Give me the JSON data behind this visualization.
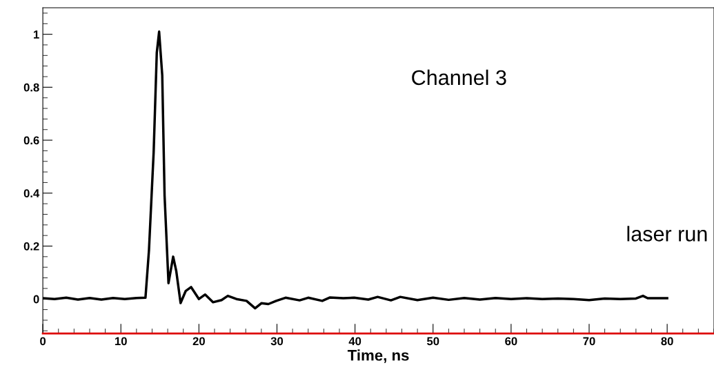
{
  "chart_data": {
    "type": "line",
    "xlabel": "Time, ns",
    "annotations": [
      "Channel 3",
      "laser run"
    ],
    "x": [
      0,
      1.5,
      3,
      4.5,
      6,
      7.5,
      9,
      10.5,
      12,
      13.15,
      13.6,
      14.2,
      14.6,
      14.9,
      15.3,
      15.6,
      16.1,
      16.7,
      17.1,
      17.65,
      18.3,
      19.0,
      20.0,
      20.8,
      21.8,
      22.9,
      23.7,
      24.8,
      26.1,
      27.2,
      28.0,
      28.9,
      29.9,
      31.1,
      32.9,
      34.0,
      35.8,
      36.8,
      38.5,
      39.9,
      41.7,
      42.9,
      44.6,
      45.8,
      48,
      50,
      52,
      54,
      56,
      58,
      60,
      62,
      64,
      66,
      68,
      70,
      72,
      74,
      76,
      76.9,
      77.5,
      80
    ],
    "series": [
      {
        "color": "#000000",
        "values": [
          0.003,
          0.0,
          0.005,
          -0.002,
          0.004,
          -0.002,
          0.004,
          0.0,
          0.004,
          0.005,
          0.185,
          0.555,
          0.93,
          1.01,
          0.845,
          0.39,
          0.06,
          0.16,
          0.105,
          -0.015,
          0.03,
          0.045,
          0.0,
          0.017,
          -0.012,
          -0.004,
          0.012,
          0.0,
          -0.007,
          -0.035,
          -0.016,
          -0.019,
          -0.007,
          0.005,
          -0.005,
          0.005,
          -0.007,
          0.006,
          0.003,
          0.005,
          -0.002,
          0.008,
          -0.005,
          0.008,
          -0.004,
          0.005,
          -0.003,
          0.004,
          -0.002,
          0.004,
          0.0,
          0.003,
          0.0,
          0.002,
          0.0,
          -0.004,
          0.002,
          0.0,
          0.002,
          0.012,
          0.003,
          0.003
        ]
      }
    ],
    "xlim": [
      0,
      86
    ],
    "ylim": [
      -0.13,
      1.1
    ],
    "xticks": [
      0,
      10,
      20,
      30,
      40,
      50,
      60,
      70,
      80
    ],
    "yticks": [
      0,
      0.2,
      0.4,
      0.6,
      0.8,
      1
    ],
    "grid": false,
    "legend": false,
    "marker": "none",
    "line_style": "solid"
  }
}
